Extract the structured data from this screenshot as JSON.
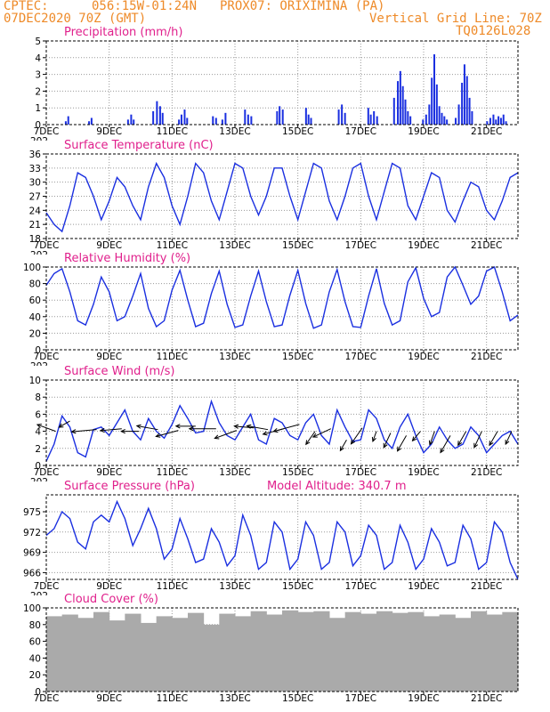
{
  "header": {
    "source": "CPTEC:",
    "coords": "056:15W-01:24N",
    "location": "PROX07: ORIXIMINA (PA)",
    "run": "07DEC2020 70Z (GMT)",
    "grid_line": "Vertical Grid Line: 70Z",
    "model_code": "TQ0126L028"
  },
  "colors": {
    "header": "#ee8a28",
    "title": "#e0208c",
    "line": "#1a2fe0",
    "bars": "#1a2fe0",
    "cloud": "#aaaaaa",
    "grid": "#999999"
  },
  "date_labels": [
    "7DEC",
    "9DEC",
    "11DEC",
    "13DEC",
    "15DEC",
    "17DEC",
    "19DEC",
    "21DEC"
  ],
  "year_stub": "202",
  "chart_data": [
    {
      "type": "bar",
      "id": "precip",
      "title": "Precipitation (mm/h)",
      "ylim": [
        0,
        5
      ],
      "yticks": [
        0,
        1,
        2,
        3,
        4,
        5
      ],
      "x_days": [
        0.62,
        0.7,
        1.36,
        1.44,
        2.6,
        2.7,
        2.78,
        3.4,
        3.52,
        3.62,
        3.7,
        4.22,
        4.3,
        4.4,
        4.48,
        5.3,
        5.4,
        5.6,
        5.7,
        6.32,
        6.42,
        6.52,
        7.34,
        7.42,
        7.52,
        8.26,
        8.34,
        8.42,
        9.3,
        9.4,
        9.5,
        10.24,
        10.32,
        10.42,
        10.52,
        11.06,
        11.18,
        11.26,
        11.34,
        11.42,
        11.5,
        11.58,
        11.98,
        12.08,
        12.18,
        12.26,
        12.34,
        12.42,
        12.5,
        12.58,
        12.66,
        12.74,
        13.02,
        13.12,
        13.22,
        13.3,
        13.38,
        13.46,
        13.54,
        14.02,
        14.12,
        14.22,
        14.3,
        14.38,
        14.46,
        14.54,
        14.62
      ],
      "values": [
        0.2,
        0.5,
        0.2,
        0.4,
        0.3,
        0.6,
        0.3,
        0.8,
        1.4,
        1.1,
        0.7,
        0.3,
        0.6,
        0.9,
        0.4,
        0.5,
        0.4,
        0.3,
        0.7,
        0.9,
        0.6,
        0.5,
        0.8,
        1.1,
        0.9,
        1.0,
        0.6,
        0.4,
        0.9,
        1.2,
        0.7,
        1.0,
        0.6,
        0.8,
        0.5,
        1.6,
        2.6,
        3.2,
        2.3,
        1.5,
        0.8,
        0.5,
        0.3,
        0.6,
        1.2,
        2.8,
        4.2,
        2.4,
        1.1,
        0.7,
        0.5,
        0.3,
        0.4,
        1.2,
        2.5,
        3.6,
        2.9,
        1.6,
        0.8,
        0.2,
        0.4,
        0.6,
        0.3,
        0.5,
        0.4,
        0.6,
        0.2
      ]
    },
    {
      "type": "line",
      "id": "temp",
      "title": "Surface Temperature (nC)",
      "ylim": [
        18,
        36
      ],
      "yticks": [
        18,
        21,
        24,
        27,
        30,
        33,
        36
      ],
      "x_days": [
        0,
        0.25,
        0.5,
        0.75,
        1.0,
        1.25,
        1.5,
        1.75,
        2.0,
        2.25,
        2.5,
        2.75,
        3.0,
        3.25,
        3.5,
        3.75,
        4.0,
        4.25,
        4.5,
        4.75,
        5.0,
        5.25,
        5.5,
        5.75,
        6.0,
        6.25,
        6.5,
        6.75,
        7.0,
        7.25,
        7.5,
        7.75,
        8.0,
        8.25,
        8.5,
        8.75,
        9.0,
        9.25,
        9.5,
        9.75,
        10.0,
        10.25,
        10.5,
        10.75,
        11.0,
        11.25,
        11.5,
        11.75,
        12.0,
        12.25,
        12.5,
        12.75,
        13.0,
        13.25,
        13.5,
        13.75,
        14.0,
        14.25,
        14.5,
        14.75,
        15.0
      ],
      "values": [
        23.5,
        21,
        19.5,
        25,
        32,
        31,
        27,
        22,
        26,
        31,
        29,
        25,
        22,
        29,
        34,
        31,
        25,
        21,
        27,
        34,
        32,
        26,
        22,
        28,
        34,
        33,
        27,
        23,
        27,
        33,
        33,
        27,
        22,
        28,
        34,
        33,
        26,
        22,
        27,
        33,
        34,
        27,
        22,
        28,
        34,
        33,
        25,
        22,
        27,
        32,
        31,
        24,
        21.5,
        26,
        30,
        29,
        24,
        22,
        26,
        31,
        32
      ],
      "color": "#1a2fe0"
    },
    {
      "type": "line",
      "id": "rh",
      "title": "Relative Humidity (%)",
      "ylim": [
        0,
        100
      ],
      "yticks": [
        0,
        20,
        40,
        60,
        80,
        100
      ],
      "x_days": [
        0,
        0.25,
        0.5,
        0.75,
        1.0,
        1.25,
        1.5,
        1.75,
        2.0,
        2.25,
        2.5,
        2.75,
        3.0,
        3.25,
        3.5,
        3.75,
        4.0,
        4.25,
        4.5,
        4.75,
        5.0,
        5.25,
        5.5,
        5.75,
        6.0,
        6.25,
        6.5,
        6.75,
        7.0,
        7.25,
        7.5,
        7.75,
        8.0,
        8.25,
        8.5,
        8.75,
        9.0,
        9.25,
        9.5,
        9.75,
        10.0,
        10.25,
        10.5,
        10.75,
        11.0,
        11.25,
        11.5,
        11.75,
        12.0,
        12.25,
        12.5,
        12.75,
        13.0,
        13.25,
        13.5,
        13.75,
        14.0,
        14.25,
        14.5,
        14.75,
        15.0
      ],
      "values": [
        78,
        92,
        98,
        70,
        35,
        30,
        55,
        88,
        70,
        35,
        40,
        65,
        92,
        50,
        28,
        35,
        72,
        96,
        60,
        28,
        32,
        68,
        95,
        55,
        27,
        30,
        65,
        95,
        58,
        28,
        30,
        66,
        96,
        56,
        26,
        30,
        70,
        97,
        58,
        28,
        27,
        65,
        98,
        56,
        30,
        35,
        82,
        99,
        62,
        40,
        45,
        88,
        100,
        78,
        55,
        65,
        95,
        100,
        70,
        35,
        42
      ],
      "color": "#1a2fe0"
    },
    {
      "type": "line",
      "id": "wind",
      "title": "Surface Wind (m/s)",
      "ylim": [
        0,
        10
      ],
      "yticks": [
        0,
        2,
        4,
        6,
        8,
        10
      ],
      "x_days": [
        0,
        0.25,
        0.5,
        0.75,
        1.0,
        1.25,
        1.5,
        1.75,
        2.0,
        2.25,
        2.5,
        2.75,
        3.0,
        3.25,
        3.5,
        3.75,
        4.0,
        4.25,
        4.5,
        4.75,
        5.0,
        5.25,
        5.5,
        5.75,
        6.0,
        6.25,
        6.5,
        6.75,
        7.0,
        7.25,
        7.5,
        7.75,
        8.0,
        8.25,
        8.5,
        8.75,
        9.0,
        9.25,
        9.5,
        9.75,
        10.0,
        10.25,
        10.5,
        10.75,
        11.0,
        11.25,
        11.5,
        11.75,
        12.0,
        12.25,
        12.5,
        12.75,
        13.0,
        13.25,
        13.5,
        13.75,
        14.0,
        14.25,
        14.5,
        14.75,
        15.0
      ],
      "values": [
        0.5,
        2.5,
        5.8,
        4.5,
        1.5,
        1.0,
        4.2,
        4.5,
        3.5,
        5.0,
        6.5,
        4.0,
        3.0,
        5.5,
        4.0,
        3.2,
        4.8,
        7.0,
        5.5,
        3.8,
        4.0,
        7.5,
        5.0,
        3.5,
        3.0,
        4.5,
        6.0,
        3.0,
        2.5,
        5.5,
        5.0,
        3.5,
        3.0,
        5.0,
        6.0,
        3.5,
        2.5,
        6.5,
        4.5,
        2.8,
        3.0,
        6.5,
        5.5,
        3.0,
        2.0,
        4.5,
        6.0,
        3.5,
        1.5,
        2.5,
        4.5,
        3.0,
        2.0,
        2.5,
        4.5,
        3.5,
        1.5,
        2.5,
        3.5,
        4.0,
        2.5
      ],
      "arrows": {
        "x_days": [
          0.3,
          0.75,
          1.6,
          2.4,
          2.95,
          3.55,
          4.2,
          4.75,
          5.4,
          6.05,
          6.6,
          7.05,
          7.55,
          8.05,
          8.55,
          9.05,
          9.55,
          10.05,
          10.5,
          10.95,
          11.45,
          11.9,
          12.35,
          12.85,
          13.35,
          13.85,
          14.35,
          14.8
        ],
        "y": [
          4.0,
          5.2,
          4.2,
          4.3,
          4.0,
          4.2,
          4.1,
          4.6,
          4.3,
          4.1,
          4.4,
          4.2,
          4.3,
          4.8,
          4.0,
          4.3,
          3.0,
          4.4,
          4.0,
          3.8,
          3.5,
          4.0,
          4.0,
          3.5,
          4.0,
          4.0,
          4.0,
          4.0
        ],
        "dir_deg": [
          160,
          210,
          185,
          185,
          180,
          170,
          195,
          180,
          180,
          200,
          175,
          170,
          195,
          195,
          235,
          205,
          240,
          235,
          250,
          245,
          240,
          230,
          250,
          240,
          240,
          245,
          240,
          245
        ],
        "len_px": [
          22,
          14,
          28,
          24,
          20,
          24,
          26,
          22,
          30,
          26,
          22,
          24,
          24,
          30,
          18,
          22,
          14,
          22,
          12,
          18,
          20,
          14,
          16,
          22,
          18,
          20,
          18,
          16
        ]
      },
      "color": "#1a2fe0"
    },
    {
      "type": "line",
      "id": "press",
      "title": "Surface Pressure (hPa)",
      "annotation": "Model Altitude: 340.7 m",
      "ylim": [
        965,
        977.5
      ],
      "yticks": [
        966,
        969,
        972,
        975
      ],
      "x_days": [
        0,
        0.25,
        0.5,
        0.75,
        1.0,
        1.25,
        1.5,
        1.75,
        2.0,
        2.25,
        2.5,
        2.75,
        3.0,
        3.25,
        3.5,
        3.75,
        4.0,
        4.25,
        4.5,
        4.75,
        5.0,
        5.25,
        5.5,
        5.75,
        6.0,
        6.25,
        6.5,
        6.75,
        7.0,
        7.25,
        7.5,
        7.75,
        8.0,
        8.25,
        8.5,
        8.75,
        9.0,
        9.25,
        9.5,
        9.75,
        10.0,
        10.25,
        10.5,
        10.75,
        11.0,
        11.25,
        11.5,
        11.75,
        12.0,
        12.25,
        12.5,
        12.75,
        13.0,
        13.25,
        13.5,
        13.75,
        14.0,
        14.25,
        14.5,
        14.75,
        15.0
      ],
      "values": [
        971.5,
        972.5,
        975,
        974,
        970.5,
        969.5,
        973.5,
        974.5,
        973.5,
        976.5,
        974,
        970,
        972.5,
        975.5,
        972.5,
        968,
        969.5,
        974,
        971,
        967.5,
        968,
        972.5,
        970.5,
        967,
        968.5,
        974.5,
        971.5,
        966.5,
        967.5,
        973.5,
        972,
        966.5,
        968,
        973.5,
        971.5,
        966.5,
        967.5,
        973.5,
        972,
        967,
        968.5,
        973,
        971.5,
        966.5,
        967.5,
        973,
        970.5,
        966.5,
        968,
        972.5,
        970.5,
        967,
        967.5,
        973,
        971,
        966.5,
        967.5,
        973.5,
        972,
        967.5,
        965
      ],
      "color": "#1a2fe0"
    },
    {
      "type": "bar",
      "id": "cloud",
      "title": "Cloud Cover (%)",
      "ylim": [
        0,
        100
      ],
      "yticks": [
        0,
        20,
        40,
        60,
        80,
        100
      ],
      "x_days": [
        0,
        0.5,
        1.0,
        1.5,
        2.0,
        2.5,
        3.0,
        3.5,
        4.0,
        4.5,
        5.0,
        5.5,
        6.0,
        6.5,
        7.0,
        7.5,
        8.0,
        8.5,
        9.0,
        9.5,
        10.0,
        10.5,
        11.0,
        11.5,
        12.0,
        12.5,
        13.0,
        13.5,
        14.0,
        14.5
      ],
      "values": [
        90,
        92,
        88,
        95,
        85,
        93,
        82,
        90,
        88,
        94,
        80,
        93,
        90,
        96,
        92,
        97,
        95,
        96,
        88,
        95,
        93,
        96,
        94,
        95,
        90,
        92,
        88,
        96,
        92,
        95
      ],
      "color": "#aaaaaa"
    }
  ]
}
